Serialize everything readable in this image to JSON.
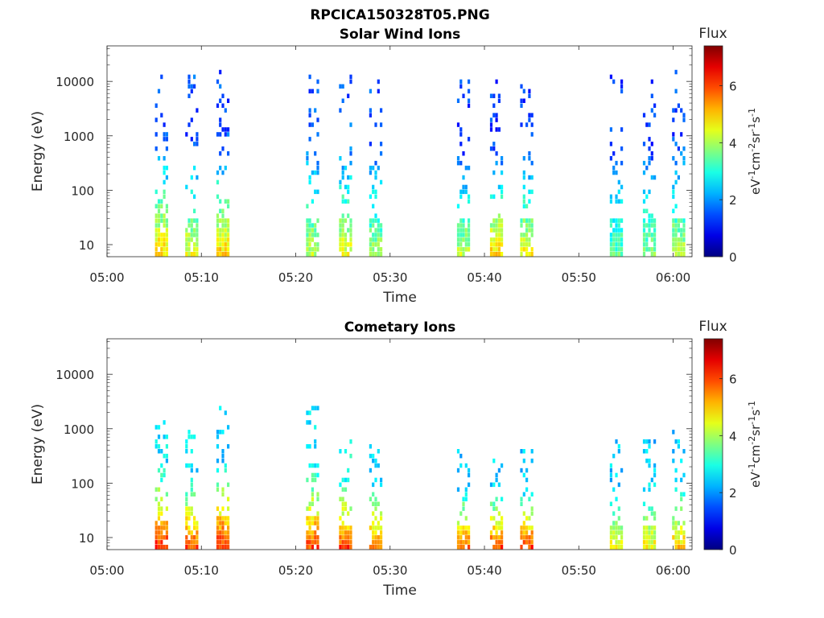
{
  "figure": {
    "suptitle": "RPCICA150328T05.PNG"
  },
  "chart_data": [
    {
      "type": "heatmap",
      "title": "Solar Wind Ions",
      "xlabel": "Time",
      "ylabel": "Energy (eV)",
      "x_ticks": [
        "05:00",
        "05:10",
        "05:20",
        "05:30",
        "05:40",
        "05:50",
        "06:00"
      ],
      "x_range_min": [
        0,
        62
      ],
      "y_scale": "log",
      "y_ticks": [
        "10",
        "100",
        "1000",
        "10000"
      ],
      "y_range_eV": [
        6,
        45000
      ],
      "colorbar": {
        "title": "Flux",
        "label": "eV-1cm-2sr-1s-1",
        "ticks": [
          "0",
          "2",
          "4",
          "6"
        ],
        "range": [
          0,
          7.4
        ],
        "colormap": "jet"
      },
      "bursts": [
        {
          "t_min": 5.8,
          "flux_low": 5.0,
          "flux_high": 1.5,
          "upper_eV": 15000
        },
        {
          "t_min": 9.0,
          "flux_low": 4.5,
          "flux_high": 1.5,
          "upper_eV": 15000
        },
        {
          "t_min": 12.3,
          "flux_low": 5.0,
          "flux_high": 1.5,
          "upper_eV": 15000
        },
        {
          "t_min": 21.8,
          "flux_low": 4.2,
          "flux_high": 1.6,
          "upper_eV": 15000
        },
        {
          "t_min": 25.3,
          "flux_low": 4.6,
          "flux_high": 1.6,
          "upper_eV": 15000
        },
        {
          "t_min": 28.5,
          "flux_low": 4.0,
          "flux_high": 1.5,
          "upper_eV": 12000
        },
        {
          "t_min": 37.8,
          "flux_low": 4.2,
          "flux_high": 1.3,
          "upper_eV": 10000
        },
        {
          "t_min": 41.3,
          "flux_low": 5.0,
          "flux_high": 1.3,
          "upper_eV": 10000
        },
        {
          "t_min": 44.5,
          "flux_low": 4.7,
          "flux_high": 1.3,
          "upper_eV": 10000
        },
        {
          "t_min": 54.0,
          "flux_low": 3.5,
          "flux_high": 1.4,
          "upper_eV": 15000
        },
        {
          "t_min": 57.5,
          "flux_low": 3.8,
          "flux_high": 1.4,
          "upper_eV": 10000
        },
        {
          "t_min": 60.6,
          "flux_low": 4.2,
          "flux_high": 1.4,
          "upper_eV": 15000
        }
      ]
    },
    {
      "type": "heatmap",
      "title": "Cometary Ions",
      "xlabel": "Time",
      "ylabel": "Energy (eV)",
      "x_ticks": [
        "05:00",
        "05:10",
        "05:20",
        "05:30",
        "05:40",
        "05:50",
        "06:00"
      ],
      "x_range_min": [
        0,
        62
      ],
      "y_scale": "log",
      "y_ticks": [
        "10",
        "100",
        "1000",
        "10000"
      ],
      "y_range_eV": [
        6,
        45000
      ],
      "colorbar": {
        "title": "Flux",
        "label": "eV-1cm-2sr-1s-1",
        "ticks": [
          "0",
          "2",
          "4",
          "6"
        ],
        "range": [
          0,
          7.4
        ],
        "colormap": "jet"
      },
      "bursts": [
        {
          "t_min": 5.8,
          "flux_low": 6.3,
          "flux_high": 2.6,
          "upper_eV": 2000
        },
        {
          "t_min": 9.0,
          "flux_low": 6.0,
          "flux_high": 2.6,
          "upper_eV": 1000
        },
        {
          "t_min": 12.3,
          "flux_low": 6.3,
          "flux_high": 2.5,
          "upper_eV": 2400
        },
        {
          "t_min": 21.8,
          "flux_low": 6.0,
          "flux_high": 2.5,
          "upper_eV": 2400
        },
        {
          "t_min": 25.3,
          "flux_low": 6.2,
          "flux_high": 2.8,
          "upper_eV": 600
        },
        {
          "t_min": 28.5,
          "flux_low": 5.8,
          "flux_high": 2.6,
          "upper_eV": 600
        },
        {
          "t_min": 37.8,
          "flux_low": 5.9,
          "flux_high": 2.4,
          "upper_eV": 400
        },
        {
          "t_min": 41.3,
          "flux_low": 6.1,
          "flux_high": 2.4,
          "upper_eV": 400
        },
        {
          "t_min": 44.5,
          "flux_low": 6.2,
          "flux_high": 2.4,
          "upper_eV": 400
        },
        {
          "t_min": 54.0,
          "flux_low": 4.7,
          "flux_high": 2.4,
          "upper_eV": 600
        },
        {
          "t_min": 57.5,
          "flux_low": 4.7,
          "flux_high": 2.4,
          "upper_eV": 600
        },
        {
          "t_min": 60.6,
          "flux_low": 5.0,
          "flux_high": 2.4,
          "upper_eV": 1000
        }
      ]
    }
  ]
}
